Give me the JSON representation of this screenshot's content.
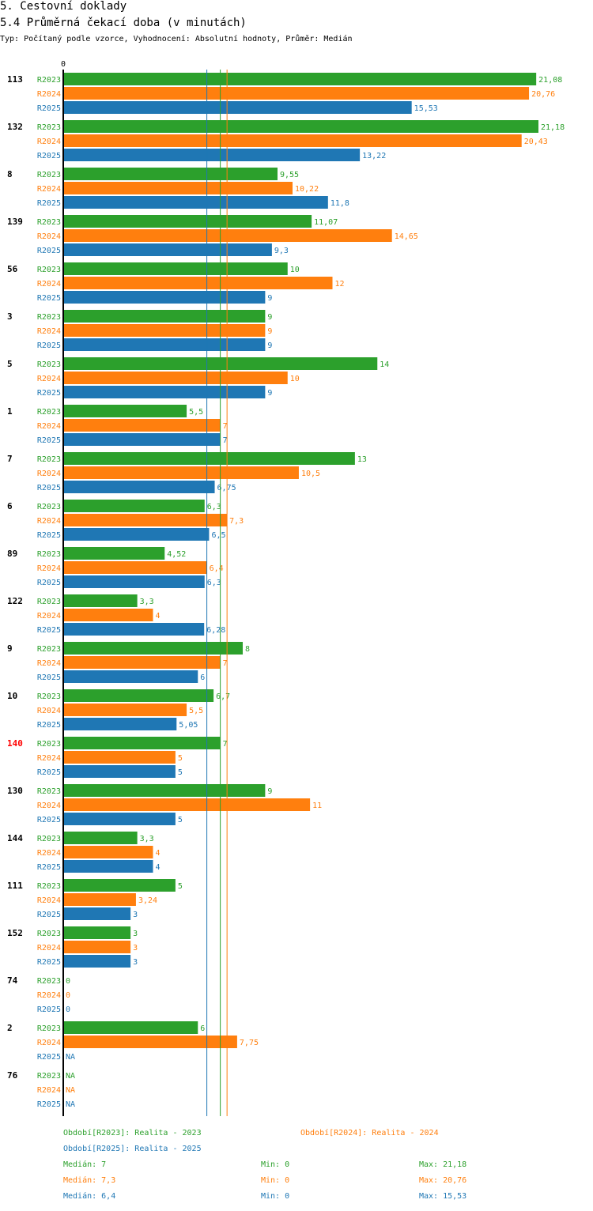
{
  "title": "5. Cestovní doklady",
  "subtitle": "5.4 Průměrná čekací doba (v minutách)",
  "meta": "Typ: Počítaný podle vzorce, Vyhodnocení: Absolutní hodnoty, Průměr: Medián",
  "colors": {
    "R2023": "#2ca02c",
    "R2024": "#ff7f0e",
    "R2025": "#1f77b4",
    "highlight": "#ff0000",
    "axis": "#000000"
  },
  "chart_data": {
    "type": "bar",
    "orientation": "horizontal",
    "axis_zero_label": "0",
    "xlim": [
      0,
      21.18
    ],
    "series_names": [
      "R2023",
      "R2024",
      "R2025"
    ],
    "groups": [
      {
        "label": "113",
        "values": [
          "21,08",
          "20,76",
          "15,53"
        ]
      },
      {
        "label": "132",
        "values": [
          "21,18",
          "20,43",
          "13,22"
        ]
      },
      {
        "label": "8",
        "values": [
          "9,55",
          "10,22",
          "11,8"
        ]
      },
      {
        "label": "139",
        "values": [
          "11,07",
          "14,65",
          "9,3"
        ]
      },
      {
        "label": "56",
        "values": [
          "10",
          "12",
          "9"
        ]
      },
      {
        "label": "3",
        "values": [
          "9",
          "9",
          "9"
        ]
      },
      {
        "label": "5",
        "values": [
          "14",
          "10",
          "9"
        ]
      },
      {
        "label": "1",
        "values": [
          "5,5",
          "7",
          "7"
        ]
      },
      {
        "label": "7",
        "values": [
          "13",
          "10,5",
          "6,75"
        ]
      },
      {
        "label": "6",
        "values": [
          "6,3",
          "7,3",
          "6,5"
        ]
      },
      {
        "label": "89",
        "values": [
          "4,52",
          "6,4",
          "6,3"
        ]
      },
      {
        "label": "122",
        "values": [
          "3,3",
          "4",
          "6,28"
        ]
      },
      {
        "label": "9",
        "values": [
          "8",
          "7",
          "6"
        ]
      },
      {
        "label": "10",
        "values": [
          "6,7",
          "5,5",
          "5,05"
        ]
      },
      {
        "label": "140",
        "values": [
          "7",
          "5",
          "5"
        ],
        "highlight": true
      },
      {
        "label": "130",
        "values": [
          "9",
          "11",
          "5"
        ]
      },
      {
        "label": "144",
        "values": [
          "3,3",
          "4",
          "4"
        ]
      },
      {
        "label": "111",
        "values": [
          "5",
          "3,24",
          "3"
        ]
      },
      {
        "label": "152",
        "values": [
          "3",
          "3",
          "3"
        ]
      },
      {
        "label": "74",
        "values": [
          "0",
          "0",
          "0"
        ]
      },
      {
        "label": "2",
        "values": [
          "6",
          "7,75",
          "NA"
        ]
      },
      {
        "label": "76",
        "values": [
          "NA",
          "NA",
          "NA"
        ]
      }
    ],
    "reference_lines": [
      {
        "series": "R2025",
        "value": 6.4
      },
      {
        "series": "R2023",
        "value": 7
      },
      {
        "series": "R2024",
        "value": 7.3
      }
    ]
  },
  "legend": {
    "periods": [
      {
        "series": "R2023",
        "text": "Období[R2023]: Realita - 2023"
      },
      {
        "series": "R2024",
        "text": "Období[R2024]: Realita - 2024"
      },
      {
        "series": "R2025",
        "text": "Období[R2025]: Realita - 2025"
      }
    ],
    "stats": [
      {
        "series": "R2023",
        "median": "Medián: 7",
        "min": "Min: 0",
        "max": "Max: 21,18"
      },
      {
        "series": "R2024",
        "median": "Medián: 7,3",
        "min": "Min: 0",
        "max": "Max: 20,76"
      },
      {
        "series": "R2025",
        "median": "Medián: 6,4",
        "min": "Min: 0",
        "max": "Max: 15,53"
      }
    ]
  }
}
